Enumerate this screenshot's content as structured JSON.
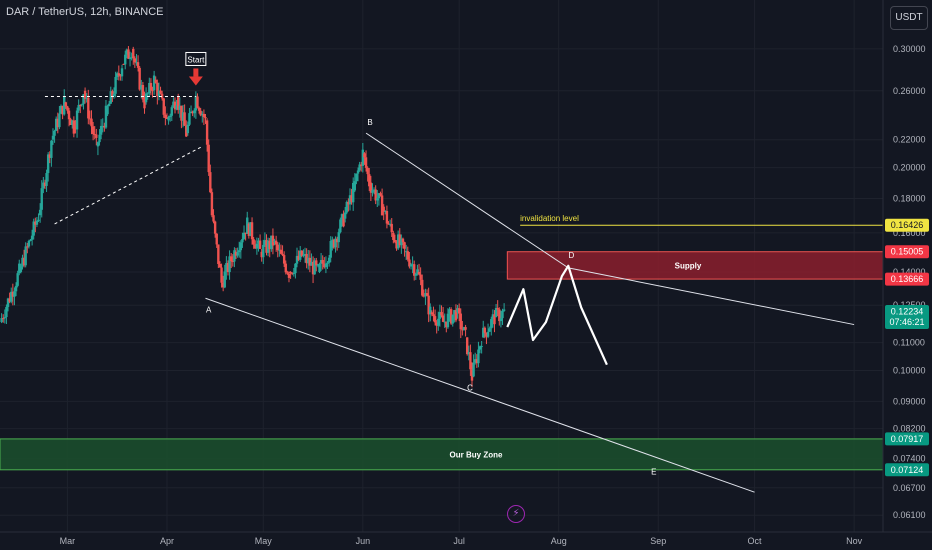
{
  "header": {
    "title": "DAR / TetherUS, 12h, BINANCE",
    "unit": "USDT"
  },
  "icons": {
    "bolt": "lightning-icon",
    "bolt_glyph": "⚡"
  },
  "colors": {
    "background": "#131722",
    "up": "#26a69a",
    "down": "#ef5350",
    "trend": "#e0e3eb",
    "invalidation": "#f0e442",
    "supply": "#8b1e2d",
    "buyzone": "#1b4d2c",
    "price_tag": "#089981",
    "text": "#b2b5be"
  },
  "chart_data": {
    "type": "candlestick",
    "title": "DAR / TetherUS, 12h, BINANCE",
    "xlabel": "",
    "ylabel": "",
    "y_scale": "log",
    "ylim": [
      0.058,
      0.32
    ],
    "x_range": [
      "2023-02-08",
      "2023-11-10"
    ],
    "x_ticks": [
      {
        "date": "2023-03-01",
        "label": "Mar"
      },
      {
        "date": "2023-04-01",
        "label": "Apr"
      },
      {
        "date": "2023-05-01",
        "label": "May"
      },
      {
        "date": "2023-06-01",
        "label": "Jun"
      },
      {
        "date": "2023-07-01",
        "label": "Jul"
      },
      {
        "date": "2023-08-01",
        "label": "Aug"
      },
      {
        "date": "2023-09-01",
        "label": "Sep"
      },
      {
        "date": "2023-10-01",
        "label": "Oct"
      },
      {
        "date": "2023-11-01",
        "label": "Nov"
      }
    ],
    "y_ticks": [
      {
        "value": 0.3,
        "label": "0.30000"
      },
      {
        "value": 0.26,
        "label": "0.26000"
      },
      {
        "value": 0.22,
        "label": "0.22000"
      },
      {
        "value": 0.2,
        "label": "0.20000"
      },
      {
        "value": 0.18,
        "label": "0.18000"
      },
      {
        "value": 0.16,
        "label": "0.16000"
      },
      {
        "value": 0.14,
        "label": "0.14000"
      },
      {
        "value": 0.125,
        "label": "0.12500"
      },
      {
        "value": 0.11,
        "label": "0.11000"
      },
      {
        "value": 0.1,
        "label": "0.10000"
      },
      {
        "value": 0.09,
        "label": "0.09000"
      },
      {
        "value": 0.082,
        "label": "0.08200"
      },
      {
        "value": 0.074,
        "label": "0.07400"
      },
      {
        "value": 0.067,
        "label": "0.06700"
      },
      {
        "value": 0.061,
        "label": "0.06100"
      }
    ],
    "grid": true,
    "price_path": [
      [
        "2023-02-08",
        0.118
      ],
      [
        "2023-02-14",
        0.14
      ],
      [
        "2023-02-20",
        0.17
      ],
      [
        "2023-02-24",
        0.22
      ],
      [
        "2023-02-28",
        0.25
      ],
      [
        "2023-03-03",
        0.23
      ],
      [
        "2023-03-06",
        0.26
      ],
      [
        "2023-03-10",
        0.215
      ],
      [
        "2023-03-13",
        0.24
      ],
      [
        "2023-03-18",
        0.285
      ],
      [
        "2023-03-21",
        0.3
      ],
      [
        "2023-03-25",
        0.25
      ],
      [
        "2023-03-28",
        0.27
      ],
      [
        "2023-04-01",
        0.235
      ],
      [
        "2023-04-04",
        0.255
      ],
      [
        "2023-04-07",
        0.225
      ],
      [
        "2023-04-10",
        0.255
      ],
      [
        "2023-04-13",
        0.235
      ],
      [
        "2023-04-15",
        0.17
      ],
      [
        "2023-04-18",
        0.135
      ],
      [
        "2023-04-22",
        0.15
      ],
      [
        "2023-04-26",
        0.165
      ],
      [
        "2023-04-30",
        0.15
      ],
      [
        "2023-05-04",
        0.155
      ],
      [
        "2023-05-09",
        0.14
      ],
      [
        "2023-05-13",
        0.148
      ],
      [
        "2023-05-18",
        0.14
      ],
      [
        "2023-05-22",
        0.152
      ],
      [
        "2023-05-26",
        0.168
      ],
      [
        "2023-05-29",
        0.185
      ],
      [
        "2023-06-01",
        0.21
      ],
      [
        "2023-06-03",
        0.19
      ],
      [
        "2023-06-07",
        0.175
      ],
      [
        "2023-06-10",
        0.16
      ],
      [
        "2023-06-14",
        0.15
      ],
      [
        "2023-06-18",
        0.14
      ],
      [
        "2023-06-22",
        0.122
      ],
      [
        "2023-06-26",
        0.118
      ],
      [
        "2023-06-30",
        0.122
      ],
      [
        "2023-07-03",
        0.112
      ],
      [
        "2023-07-05",
        0.098
      ],
      [
        "2023-07-08",
        0.112
      ],
      [
        "2023-07-12",
        0.12
      ],
      [
        "2023-07-15",
        0.122
      ]
    ],
    "triangle": {
      "upper": [
        [
          "2023-02-22",
          0.255
        ],
        [
          "2023-04-10",
          0.255
        ]
      ],
      "lower": [
        [
          "2023-02-25",
          0.165
        ],
        [
          "2023-04-12",
          0.215
        ]
      ]
    },
    "trendlines": [
      {
        "from": [
          "2023-06-02",
          0.225
        ],
        "to": [
          "2023-08-04",
          0.142
        ]
      },
      {
        "from": [
          "2023-08-04",
          0.142
        ],
        "to": [
          "2023-11-01",
          0.117
        ]
      },
      {
        "from": [
          "2023-04-13",
          0.128
        ],
        "to": [
          "2023-10-01",
          0.066
        ]
      }
    ],
    "projection": [
      [
        "2023-07-16",
        0.116
      ],
      [
        "2023-07-21",
        0.132
      ],
      [
        "2023-07-24",
        0.111
      ],
      [
        "2023-07-28",
        0.118
      ],
      [
        "2023-08-02",
        0.138
      ],
      [
        "2023-08-04",
        0.143
      ],
      [
        "2023-08-08",
        0.124
      ],
      [
        "2023-08-16",
        0.102
      ]
    ],
    "zones": [
      {
        "name": "Supply",
        "from": "2023-07-16",
        "to": "2023-11-10",
        "low": 0.13666,
        "high": 0.15005
      },
      {
        "name": "Our Buy Zone",
        "from": "2023-02-08",
        "to": "2023-11-10",
        "low": 0.07124,
        "high": 0.07917
      }
    ],
    "invalidation": {
      "label": "invalidation level",
      "value": 0.16426,
      "from": "2023-07-20"
    },
    "points": [
      {
        "label": "A",
        "date": "2023-04-14",
        "value": 0.128
      },
      {
        "label": "B",
        "date": "2023-06-02",
        "value": 0.225
      },
      {
        "label": "C",
        "date": "2023-07-05",
        "value": 0.098
      },
      {
        "label": "D",
        "date": "2023-08-04",
        "value": 0.143
      },
      {
        "label": "E",
        "date": "2023-08-30",
        "value": 0.0735
      }
    ],
    "start_marker": {
      "label": "Start",
      "date": "2023-04-10",
      "value": 0.255
    },
    "price_labels": [
      {
        "value": 0.16426,
        "text": "0.16426",
        "kind": "yellow"
      },
      {
        "value": 0.15005,
        "text": "0.15005",
        "kind": "red"
      },
      {
        "value": 0.13666,
        "text": "0.13666",
        "kind": "red"
      },
      {
        "value": 0.12234,
        "text": "0.12234",
        "kind": "green",
        "sub": "07:46:21"
      },
      {
        "value": 0.07917,
        "text": "0.07917",
        "kind": "green"
      },
      {
        "value": 0.07124,
        "text": "0.07124",
        "kind": "green"
      }
    ]
  }
}
